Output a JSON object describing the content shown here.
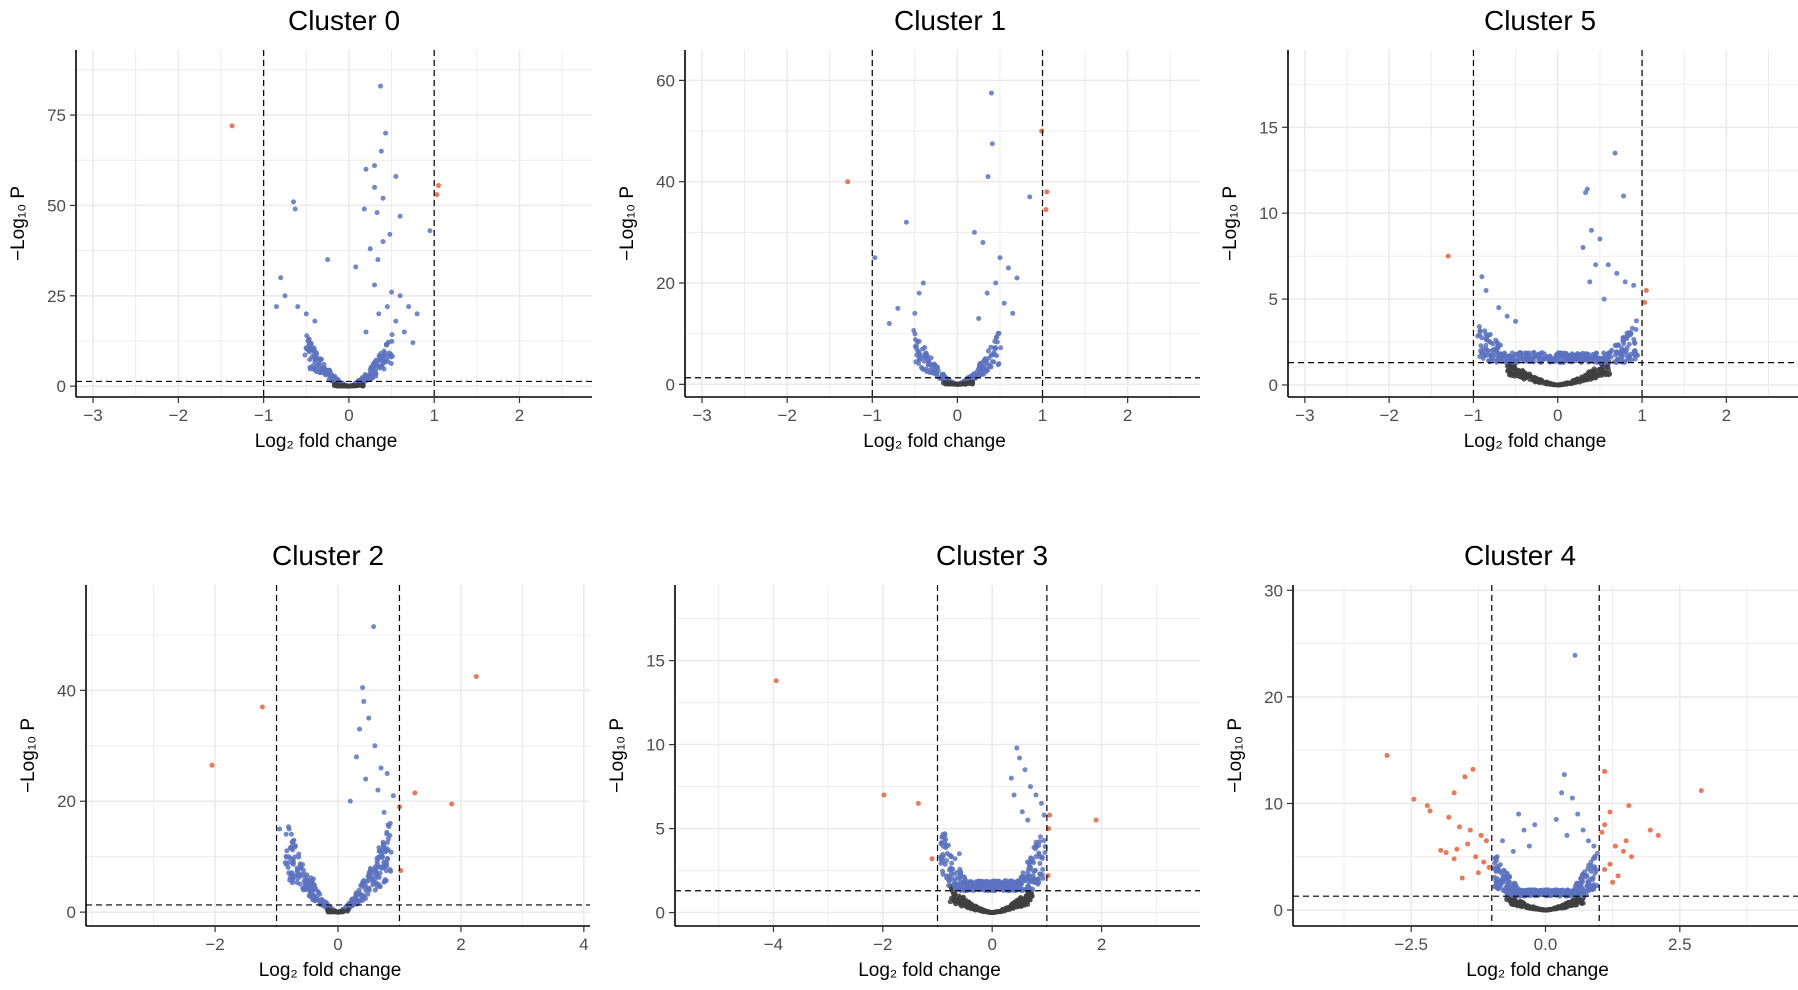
{
  "chart_data": [
    {
      "type": "scatter",
      "title": "Cluster 0",
      "xlabel": "Log₂ fold change",
      "ylabel": "−Log₁₀ P",
      "xlim": [
        -3.2,
        2.85
      ],
      "ylim": [
        -3,
        93
      ],
      "xticks": [
        -3,
        -2,
        -1,
        0,
        1,
        2
      ],
      "yticks": [
        0,
        25,
        50,
        75
      ],
      "grid": true,
      "vlines": [
        -1,
        1
      ],
      "hline": 1.3,
      "colors": {
        "not_sig": "#404040",
        "p_only": "#5a72c0",
        "p_and_fc": "#e8603c"
      },
      "points_p_and_fc": [
        [
          -1.37,
          72
        ],
        [
          1.05,
          55.5
        ],
        [
          1.03,
          53
        ]
      ],
      "points_p_only": [
        [
          0.37,
          83
        ],
        [
          0.43,
          70
        ],
        [
          0.38,
          65
        ],
        [
          0.3,
          61
        ],
        [
          0.2,
          60
        ],
        [
          0.55,
          58
        ],
        [
          0.3,
          55
        ],
        [
          0.4,
          52
        ],
        [
          -0.65,
          51
        ],
        [
          -0.63,
          49
        ],
        [
          0.18,
          49
        ],
        [
          0.33,
          48
        ],
        [
          0.6,
          47
        ],
        [
          0.95,
          43
        ],
        [
          0.48,
          42
        ],
        [
          0.4,
          40
        ],
        [
          0.25,
          38
        ],
        [
          0.34,
          35
        ],
        [
          0.08,
          33
        ],
        [
          -0.25,
          35
        ],
        [
          0.3,
          28
        ],
        [
          0.5,
          26
        ],
        [
          0.6,
          25
        ],
        [
          0.7,
          22
        ],
        [
          0.8,
          20
        ],
        [
          -0.8,
          30
        ],
        [
          -0.75,
          25
        ],
        [
          -0.6,
          22
        ],
        [
          -0.5,
          20
        ],
        [
          -0.4,
          18
        ],
        [
          -0.85,
          22
        ],
        [
          0.45,
          22
        ],
        [
          0.35,
          20
        ],
        [
          0.55,
          18
        ],
        [
          0.2,
          15
        ],
        [
          0.65,
          15
        ],
        [
          0.75,
          12
        ]
      ],
      "band_p_only": {
        "spread": 0.5,
        "max": 12,
        "count": 260,
        "seed": 11
      }
    },
    {
      "type": "scatter",
      "title": "Cluster 1",
      "xlabel": "Log₂ fold change",
      "ylabel": "−Log₁₀ P",
      "xlim": [
        -3.2,
        2.85
      ],
      "ylim": [
        -2.5,
        66
      ],
      "xticks": [
        -3,
        -2,
        -1,
        0,
        1,
        2
      ],
      "yticks": [
        0,
        20,
        40,
        60
      ],
      "grid": true,
      "vlines": [
        -1,
        1
      ],
      "hline": 1.3,
      "colors": {
        "not_sig": "#404040",
        "p_only": "#5a72c0",
        "p_and_fc": "#e8603c"
      },
      "points_p_and_fc": [
        [
          -1.29,
          40
        ],
        [
          1.05,
          38
        ],
        [
          1.04,
          34.5
        ],
        [
          0.99,
          50
        ]
      ],
      "points_p_only": [
        [
          0.4,
          57.5
        ],
        [
          0.41,
          47.5
        ],
        [
          0.36,
          41
        ],
        [
          0.85,
          37
        ],
        [
          -0.6,
          32
        ],
        [
          -0.97,
          25
        ],
        [
          0.2,
          30
        ],
        [
          0.3,
          28
        ],
        [
          0.5,
          25
        ],
        [
          0.6,
          23
        ],
        [
          0.7,
          21
        ],
        [
          -0.4,
          20
        ],
        [
          -0.45,
          18
        ],
        [
          -0.7,
          15
        ],
        [
          -0.8,
          12
        ],
        [
          -0.5,
          14
        ],
        [
          0.45,
          20
        ],
        [
          0.35,
          18
        ],
        [
          0.55,
          16
        ],
        [
          0.65,
          14
        ],
        [
          0.25,
          13
        ]
      ],
      "band_p_only": {
        "spread": 0.5,
        "max": 9,
        "count": 230,
        "seed": 21
      }
    },
    {
      "type": "scatter",
      "title": "Cluster 5",
      "xlabel": "Log₂ fold change",
      "ylabel": "−Log₁₀ P",
      "xlim": [
        -3.2,
        2.85
      ],
      "ylim": [
        -0.7,
        19.5
      ],
      "xticks": [
        -3,
        -2,
        -1,
        0,
        1,
        2
      ],
      "yticks": [
        0,
        5,
        10,
        15
      ],
      "grid": true,
      "vlines": [
        -1,
        1
      ],
      "hline": 1.3,
      "colors": {
        "not_sig": "#404040",
        "p_only": "#5a72c0",
        "p_and_fc": "#e8603c"
      },
      "points_p_and_fc": [
        [
          -1.3,
          7.5
        ],
        [
          1.05,
          5.5
        ],
        [
          1.03,
          4.8
        ]
      ],
      "points_p_only": [
        [
          0.68,
          13.5
        ],
        [
          0.35,
          11.4
        ],
        [
          0.33,
          11.2
        ],
        [
          0.78,
          11
        ],
        [
          0.4,
          9
        ],
        [
          0.3,
          8
        ],
        [
          0.5,
          8.5
        ],
        [
          0.6,
          7
        ],
        [
          0.7,
          6.5
        ],
        [
          0.8,
          6
        ],
        [
          0.9,
          5.8
        ],
        [
          -0.9,
          6.3
        ],
        [
          -0.85,
          5.5
        ],
        [
          -0.7,
          4.5
        ],
        [
          -0.6,
          4
        ],
        [
          -0.5,
          3.7
        ],
        [
          0.45,
          7
        ],
        [
          0.38,
          6
        ],
        [
          0.55,
          5
        ]
      ],
      "band_p_only": {
        "spread": 0.95,
        "max": 3.2,
        "count": 380,
        "seed": 31
      },
      "band_not_sig": {
        "spread": 0.6,
        "max": 1.3,
        "count": 260,
        "seed": 32
      }
    },
    {
      "type": "scatter",
      "title": "Cluster 2",
      "xlabel": "Log₂ fold change",
      "ylabel": "−Log₁₀ P",
      "xlim": [
        -4.1,
        4.1
      ],
      "ylim": [
        -2.5,
        59
      ],
      "xticks": [
        -2,
        0,
        2,
        4
      ],
      "yticks": [
        0,
        20,
        40
      ],
      "grid": true,
      "vlines": [
        -1,
        1
      ],
      "hline": 1.3,
      "colors": {
        "not_sig": "#404040",
        "p_only": "#5a72c0",
        "p_and_fc": "#e8603c"
      },
      "points_p_and_fc": [
        [
          2.25,
          42.5
        ],
        [
          -1.23,
          37
        ],
        [
          -2.05,
          26.5
        ],
        [
          1.25,
          21.5
        ],
        [
          1.85,
          19.5
        ],
        [
          1.0,
          19
        ],
        [
          1.02,
          7.5
        ]
      ],
      "points_p_only": [
        [
          0.58,
          51.5
        ],
        [
          0.4,
          40.5
        ],
        [
          0.42,
          38
        ],
        [
          0.5,
          35
        ],
        [
          0.35,
          33
        ],
        [
          0.6,
          30
        ],
        [
          0.3,
          28
        ],
        [
          0.7,
          26
        ],
        [
          0.8,
          25
        ],
        [
          0.9,
          21
        ],
        [
          -0.95,
          15
        ],
        [
          -0.8,
          10
        ],
        [
          -0.6,
          8
        ],
        [
          -0.4,
          6
        ],
        [
          0.45,
          24
        ],
        [
          0.65,
          22
        ],
        [
          0.75,
          18
        ],
        [
          0.85,
          16
        ],
        [
          0.2,
          20
        ]
      ],
      "band_p_only": {
        "spread": 0.85,
        "max": 14,
        "count": 360,
        "seed": 41
      }
    },
    {
      "type": "scatter",
      "title": "Cluster 3",
      "xlabel": "Log₂ fold change",
      "ylabel": "−Log₁₀ P",
      "xlim": [
        -5.8,
        3.8
      ],
      "ylim": [
        -0.8,
        19.5
      ],
      "xticks": [
        -4,
        -2,
        0,
        2
      ],
      "yticks": [
        0,
        5,
        10,
        15
      ],
      "grid": true,
      "vlines": [
        -1,
        1
      ],
      "hline": 1.3,
      "colors": {
        "not_sig": "#404040",
        "p_only": "#5a72c0",
        "p_and_fc": "#e8603c"
      },
      "points_p_and_fc": [
        [
          -3.95,
          13.8
        ],
        [
          -1.98,
          7
        ],
        [
          -1.35,
          6.5
        ],
        [
          -1.1,
          3.2
        ],
        [
          1.05,
          5.8
        ],
        [
          1.03,
          5
        ],
        [
          1.9,
          5.5
        ],
        [
          1.02,
          2.2
        ]
      ],
      "points_p_only": [
        [
          0.45,
          9.8
        ],
        [
          0.5,
          9.2
        ],
        [
          0.35,
          8
        ],
        [
          0.6,
          8.5
        ],
        [
          0.7,
          7.5
        ],
        [
          0.8,
          7
        ],
        [
          0.9,
          6.5
        ],
        [
          0.95,
          5.8
        ],
        [
          -0.8,
          4
        ],
        [
          -0.6,
          3.5
        ],
        [
          -0.9,
          3
        ],
        [
          0.4,
          7
        ],
        [
          0.55,
          6
        ],
        [
          0.65,
          5.5
        ]
      ],
      "band_p_only": {
        "spread": 0.95,
        "max": 4.5,
        "count": 360,
        "seed": 51
      },
      "band_not_sig": {
        "spread": 0.75,
        "max": 1.3,
        "count": 280,
        "seed": 52
      }
    },
    {
      "type": "scatter",
      "title": "Cluster 4",
      "xlabel": "Log₂ fold change",
      "ylabel": "−Log₁₀ P",
      "xlim": [
        -4.7,
        4.7
      ],
      "ylim": [
        -1.5,
        30.5
      ],
      "xticks": [
        -2.5,
        0,
        2.5
      ],
      "xtick_labels": [
        "−2.5",
        "0.0",
        "2.5"
      ],
      "yticks": [
        0,
        10,
        20,
        30
      ],
      "grid": true,
      "vlines": [
        -1,
        1
      ],
      "hline": 1.3,
      "colors": {
        "not_sig": "#404040",
        "p_only": "#5a72c0",
        "p_and_fc": "#e8603c"
      },
      "points_p_and_fc": [
        [
          -2.95,
          14.5
        ],
        [
          -1.35,
          13.2
        ],
        [
          -1.5,
          12.5
        ],
        [
          -1.7,
          11
        ],
        [
          -2.45,
          10.4
        ],
        [
          -2.2,
          9.8
        ],
        [
          -2.15,
          9.3
        ],
        [
          -1.8,
          8.7
        ],
        [
          -1.6,
          7.8
        ],
        [
          -1.4,
          7.5
        ],
        [
          -1.2,
          7
        ],
        [
          -1.1,
          6.5
        ],
        [
          -1.45,
          6.2
        ],
        [
          -1.65,
          5.7
        ],
        [
          -1.85,
          5.4
        ],
        [
          -1.3,
          5
        ],
        [
          -1.15,
          4.5
        ],
        [
          -1.05,
          4
        ],
        [
          -1.25,
          3.5
        ],
        [
          -1.55,
          3
        ],
        [
          -1.7,
          4.8
        ],
        [
          -1.95,
          5.6
        ],
        [
          1.1,
          13
        ],
        [
          2.9,
          11.2
        ],
        [
          1.55,
          9.8
        ],
        [
          1.2,
          9.2
        ],
        [
          1.1,
          8
        ],
        [
          1.05,
          7.3
        ],
        [
          1.95,
          7.5
        ],
        [
          2.1,
          7
        ],
        [
          1.5,
          6.5
        ],
        [
          1.3,
          6
        ],
        [
          1.45,
          5.5
        ],
        [
          1.6,
          5
        ],
        [
          1.2,
          4.3
        ],
        [
          1.1,
          3.8
        ],
        [
          1.35,
          3.2
        ],
        [
          1.25,
          2.6
        ]
      ],
      "points_p_only": [
        [
          0.55,
          23.9
        ],
        [
          0.35,
          12.7
        ],
        [
          0.3,
          11
        ],
        [
          0.5,
          10.5
        ],
        [
          -0.5,
          9
        ],
        [
          -0.2,
          8
        ],
        [
          0.2,
          8.5
        ],
        [
          0.6,
          9
        ],
        [
          0.7,
          7.5
        ],
        [
          0.8,
          6.5
        ],
        [
          0.9,
          6
        ],
        [
          -0.8,
          6.5
        ],
        [
          -0.6,
          5.5
        ],
        [
          -0.9,
          5
        ],
        [
          -0.3,
          6
        ],
        [
          0.4,
          7
        ],
        [
          -0.4,
          7.5
        ]
      ],
      "band_p_only": {
        "spread": 0.95,
        "max": 4.5,
        "count": 380,
        "seed": 61
      },
      "band_not_sig": {
        "spread": 0.7,
        "max": 1.3,
        "count": 240,
        "seed": 62
      }
    }
  ]
}
